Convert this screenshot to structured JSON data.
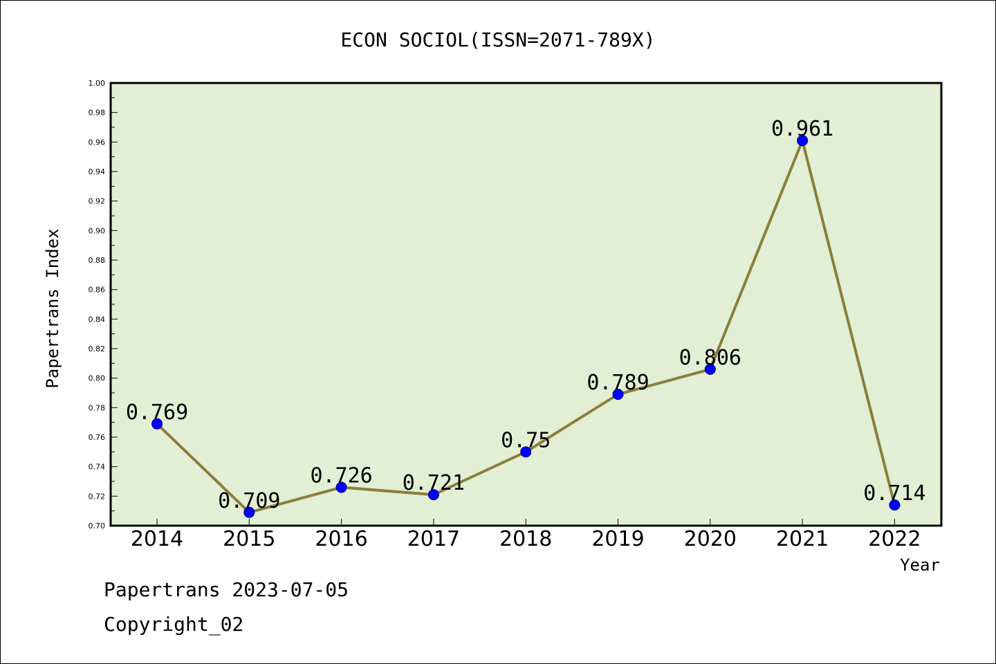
{
  "colors": {
    "plot_background": "#e2efd5",
    "line": "#8b7e3a",
    "marker": "#0000ff",
    "marker_edge": "#000080"
  },
  "footer": {
    "line1": "Papertrans 2023-07-05",
    "line2": "Copyright_02"
  },
  "chart_data": {
    "type": "line",
    "title": "ECON SOCIOL(ISSN=2071-789X)",
    "xlabel": "Year",
    "ylabel": "Papertrans Index",
    "ylim": [
      0.7,
      1.0
    ],
    "yticks": [
      "0.70",
      "0.72",
      "0.74",
      "0.76",
      "0.78",
      "0.80",
      "0.82",
      "0.84",
      "0.86",
      "0.88",
      "0.90",
      "0.92",
      "0.94",
      "0.96",
      "0.98",
      "1.00"
    ],
    "categories": [
      "2014",
      "2015",
      "2016",
      "2017",
      "2018",
      "2019",
      "2020",
      "2021",
      "2022"
    ],
    "series": [
      {
        "values": [
          0.769,
          0.709,
          0.726,
          0.721,
          0.75,
          0.789,
          0.806,
          0.961,
          0.714
        ],
        "labels": [
          "0.769",
          "0.709",
          "0.726",
          "0.721",
          "0.75",
          "0.789",
          "0.806",
          "0.961",
          "0.714"
        ]
      }
    ],
    "grid": false
  }
}
